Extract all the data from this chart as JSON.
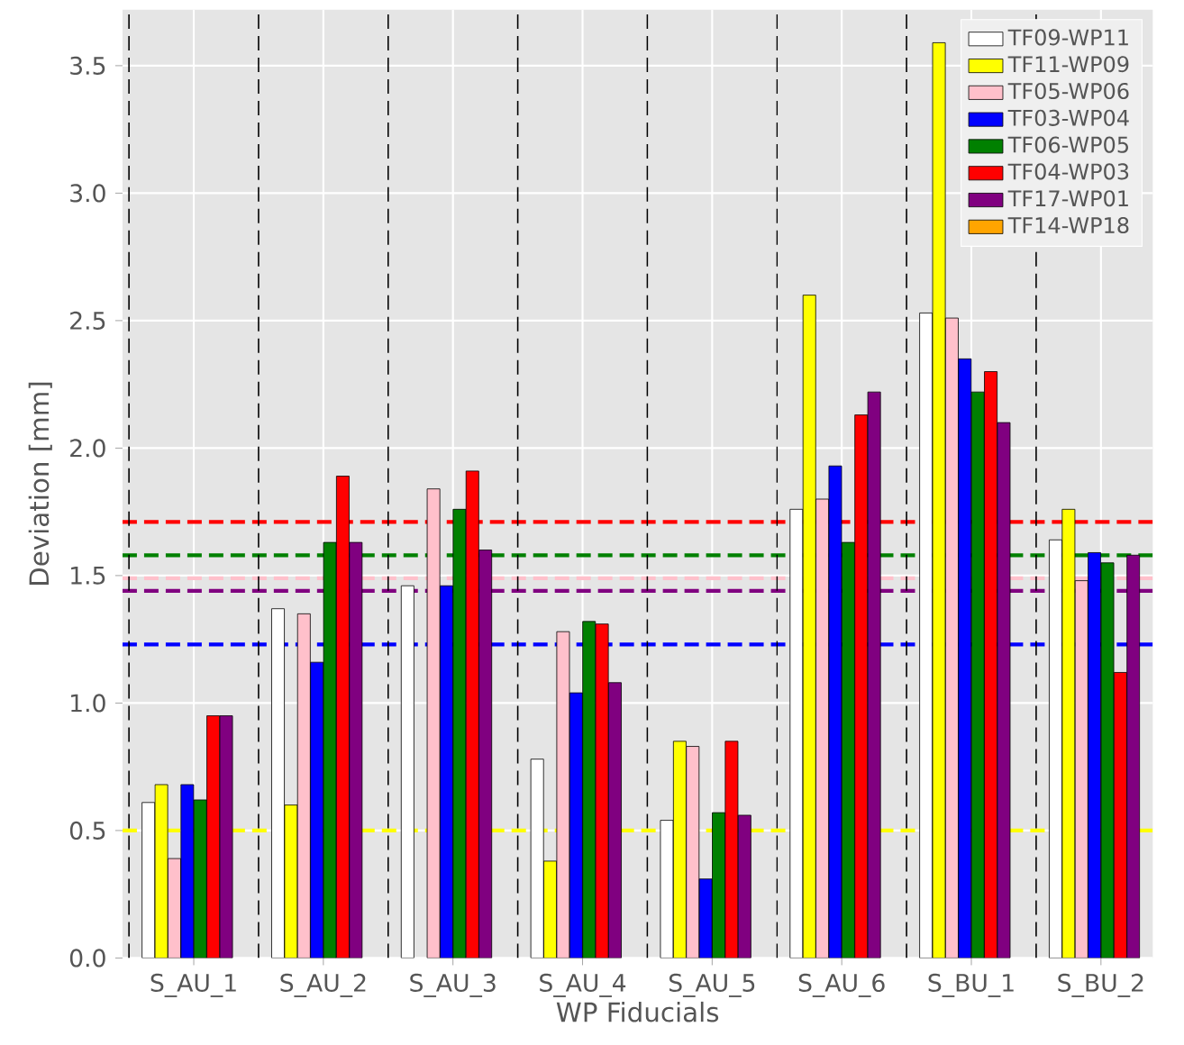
{
  "chart_data": {
    "type": "bar",
    "xlabel": "WP Fiducials",
    "ylabel": "Deviation [mm]",
    "categories": [
      "S_AU_1",
      "S_AU_2",
      "S_AU_3",
      "S_AU_4",
      "S_AU_5",
      "S_AU_6",
      "S_BU_1",
      "S_BU_2"
    ],
    "series": [
      {
        "name": "TF09-WP11",
        "color": "#ffffff",
        "values": [
          0.61,
          1.37,
          1.46,
          0.78,
          0.54,
          1.76,
          2.53,
          1.64
        ]
      },
      {
        "name": "TF11-WP09",
        "color": "#ffff00",
        "values": [
          0.68,
          0.6,
          null,
          0.38,
          0.85,
          2.6,
          3.59,
          1.76
        ]
      },
      {
        "name": "TF05-WP06",
        "color": "#ffc0cb",
        "values": [
          0.39,
          1.35,
          1.84,
          1.28,
          0.83,
          1.8,
          2.51,
          1.48
        ]
      },
      {
        "name": "TF03-WP04",
        "color": "#0000ff",
        "values": [
          0.68,
          1.16,
          1.46,
          1.04,
          0.31,
          1.93,
          2.35,
          1.59
        ]
      },
      {
        "name": "TF06-WP05",
        "color": "#008000",
        "values": [
          0.62,
          1.63,
          1.76,
          1.32,
          0.57,
          1.63,
          2.22,
          1.55
        ]
      },
      {
        "name": "TF04-WP03",
        "color": "#ff0000",
        "values": [
          0.95,
          1.89,
          1.91,
          1.31,
          0.85,
          2.13,
          2.3,
          1.12
        ]
      },
      {
        "name": "TF17-WP01",
        "color": "#800080",
        "values": [
          0.95,
          1.63,
          1.6,
          1.08,
          0.56,
          2.22,
          2.1,
          1.58
        ]
      },
      {
        "name": "TF14-WP18",
        "color": "#ffa500",
        "values": [
          null,
          null,
          null,
          null,
          null,
          null,
          null,
          null
        ]
      }
    ],
    "ylim": [
      0,
      3.72
    ],
    "yticks": [
      {
        "value": 0,
        "label": "0.0"
      },
      {
        "value": 0.5,
        "label": "0.5"
      },
      {
        "value": 1,
        "label": "1.0"
      },
      {
        "value": 1.5,
        "label": "1.5"
      },
      {
        "value": 2,
        "label": "2.0"
      },
      {
        "value": 2.5,
        "label": "2.5"
      },
      {
        "value": 3,
        "label": "3.0"
      },
      {
        "value": 3.5,
        "label": "3.5"
      }
    ],
    "ref_lines": [
      {
        "axis": "y",
        "value": 1.71,
        "color": "#ff0000",
        "line_style": "dashed"
      },
      {
        "axis": "y",
        "value": 1.58,
        "color": "#008000",
        "line_style": "dashed"
      },
      {
        "axis": "y",
        "value": 1.49,
        "color": "#ffc0cb",
        "line_style": "dashed"
      },
      {
        "axis": "y",
        "value": 1.44,
        "color": "#800080",
        "line_style": "dashed"
      },
      {
        "axis": "y",
        "value": 1.23,
        "color": "#0000ff",
        "line_style": "dashed"
      },
      {
        "axis": "y",
        "value": 0.5,
        "color": "#ffff00",
        "line_style": "dashed"
      }
    ],
    "grid": true,
    "legend": "top right"
  }
}
